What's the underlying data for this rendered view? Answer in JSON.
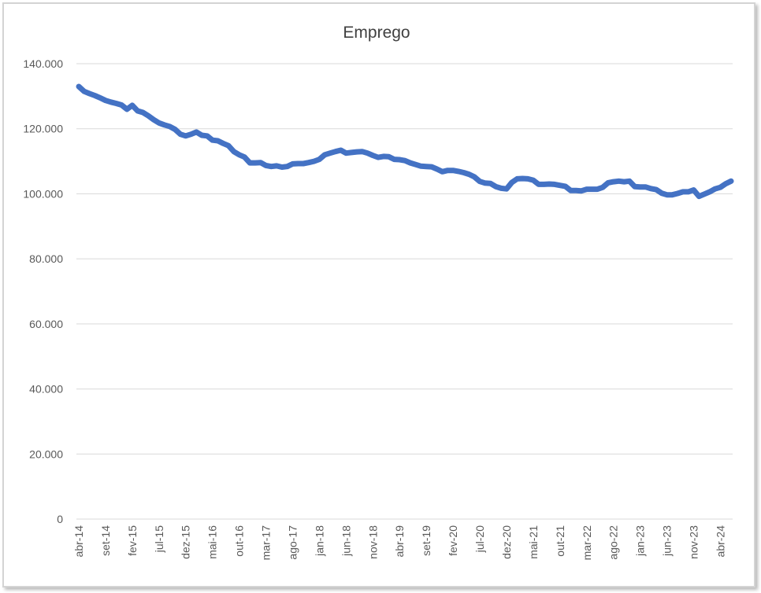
{
  "chart_data": {
    "type": "line",
    "title": "Emprego",
    "categories": [
      "abr-14",
      null,
      null,
      null,
      null,
      "set-14",
      null,
      null,
      null,
      null,
      "fev-15",
      null,
      null,
      null,
      null,
      "jul-15",
      null,
      null,
      null,
      null,
      "dez-15",
      null,
      null,
      null,
      null,
      "mai-16",
      null,
      null,
      null,
      null,
      "out-16",
      null,
      null,
      null,
      null,
      "mar-17",
      null,
      null,
      null,
      null,
      "ago-17",
      null,
      null,
      null,
      null,
      "jan-18",
      null,
      null,
      null,
      null,
      "jun-18",
      null,
      null,
      null,
      null,
      "nov-18",
      null,
      null,
      null,
      null,
      "abr-19",
      null,
      null,
      null,
      null,
      "set-19",
      null,
      null,
      null,
      null,
      "fev-20",
      null,
      null,
      null,
      null,
      "jul-20",
      null,
      null,
      null,
      null,
      "dez-20",
      null,
      null,
      null,
      null,
      "mai-21",
      null,
      null,
      null,
      null,
      "out-21",
      null,
      null,
      null,
      null,
      "mar-22",
      null,
      null,
      null,
      null,
      "ago-22",
      null,
      null,
      null,
      null,
      "jan-23",
      null,
      null,
      null,
      null,
      "jun-23",
      null,
      null,
      null,
      null,
      "nov-23",
      null,
      null,
      null,
      null,
      "abr-24",
      null,
      null
    ],
    "series": [
      {
        "name": "Emprego",
        "color": "#4472c4",
        "values": [
          133000,
          131500,
          130800,
          130200,
          129500,
          128700,
          128200,
          127800,
          127300,
          126000,
          127200,
          125500,
          125000,
          124000,
          122800,
          121800,
          121200,
          120700,
          119800,
          118300,
          117800,
          118300,
          119000,
          118000,
          117800,
          116500,
          116300,
          115500,
          114800,
          113000,
          112000,
          111300,
          109500,
          109500,
          109600,
          108700,
          108400,
          108600,
          108200,
          108400,
          109200,
          109300,
          109300,
          109600,
          110000,
          110600,
          112000,
          112500,
          113000,
          113400,
          112500,
          112700,
          112900,
          113000,
          112500,
          111800,
          111200,
          111500,
          111400,
          110600,
          110500,
          110200,
          109500,
          109000,
          108500,
          108400,
          108300,
          107600,
          106800,
          107200,
          107200,
          106900,
          106500,
          106000,
          105200,
          103800,
          103300,
          103200,
          102200,
          101700,
          101500,
          103500,
          104600,
          104700,
          104600,
          104200,
          102900,
          102900,
          103000,
          102900,
          102600,
          102300,
          101000,
          101000,
          100900,
          101400,
          101400,
          101400,
          102000,
          103400,
          103700,
          103900,
          103700,
          103900,
          102200,
          102100,
          102100,
          101600,
          101300,
          100200,
          99700,
          99700,
          100100,
          100600,
          100600,
          101200,
          99200,
          99900,
          100600,
          101500,
          102000,
          103100,
          103900
        ]
      }
    ],
    "ylim": [
      0,
      140000
    ],
    "yticks": [
      {
        "value": 0,
        "label": "0"
      },
      {
        "value": 20000,
        "label": "20.000"
      },
      {
        "value": 40000,
        "label": "40.000"
      },
      {
        "value": 60000,
        "label": "60.000"
      },
      {
        "value": 80000,
        "label": "80.000"
      },
      {
        "value": 100000,
        "label": "100.000"
      },
      {
        "value": 120000,
        "label": "120.000"
      },
      {
        "value": 140000,
        "label": "140.000"
      }
    ],
    "grid": true
  }
}
